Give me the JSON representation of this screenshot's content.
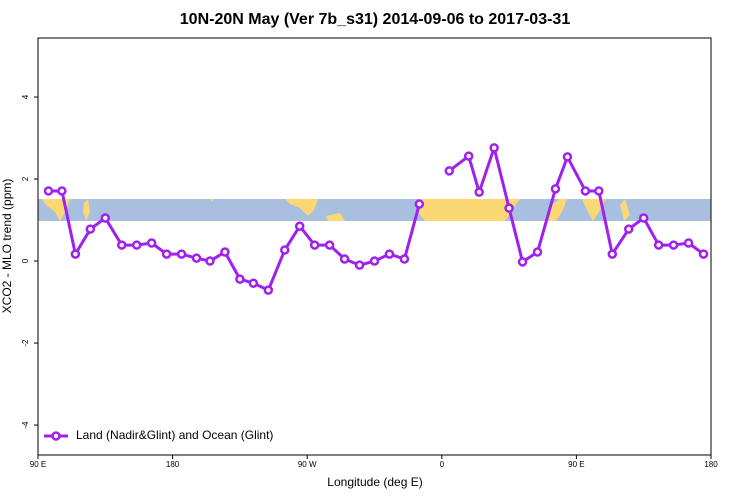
{
  "chart_data": {
    "type": "line",
    "title": "10N-20N May (Ver 7b_s31)   2014-09-06 to 2017-03-31",
    "x_label": "Longitude (deg E)",
    "y_label": "XCO2 - MLO trend (ppm)",
    "xlim": [
      90,
      540
    ],
    "ylim": [
      -4.73,
      5.44
    ],
    "xticks": [
      {
        "value": 90,
        "label": "90 E"
      },
      180,
      {
        "value": 270,
        "label": "90 W"
      },
      {
        "value": 360,
        "label": "0"
      },
      {
        "value": 450,
        "label": "90 E"
      },
      {
        "value": 540,
        "label": "180"
      }
    ],
    "yticks": [
      -4,
      -2,
      0,
      2,
      4
    ],
    "legend": "bottom-left",
    "x": [
      97,
      106,
      115,
      125,
      135,
      146,
      156,
      166,
      176,
      186,
      196,
      205,
      215,
      225,
      234,
      244,
      255,
      265,
      275,
      285,
      295,
      305,
      315,
      325,
      335,
      345,
      355,
      365,
      378,
      385,
      395,
      405,
      414,
      424,
      436,
      444,
      456,
      465,
      474,
      485,
      495,
      505,
      515,
      525,
      535
    ],
    "series": [
      {
        "name": "Land (Nadir&Glint) and Ocean (Glint)",
        "color": "#a020f0",
        "values": [
          1.71,
          1.71,
          0.17,
          0.78,
          1.05,
          0.39,
          0.39,
          0.44,
          0.17,
          0.17,
          0.07,
          0,
          0.22,
          -0.44,
          -0.54,
          -0.71,
          0.27,
          0.85,
          0.39,
          0.39,
          0.05,
          -0.1,
          0,
          0.17,
          0.05,
          1.39,
          null,
          2.2,
          2.56,
          1.68,
          2.76,
          1.29,
          -0.02,
          0.22,
          1.76,
          2.54,
          1.71,
          1.71,
          0.17,
          0.78,
          1.05,
          0.39,
          0.39,
          0.44,
          0.17
        ]
      }
    ]
  }
}
